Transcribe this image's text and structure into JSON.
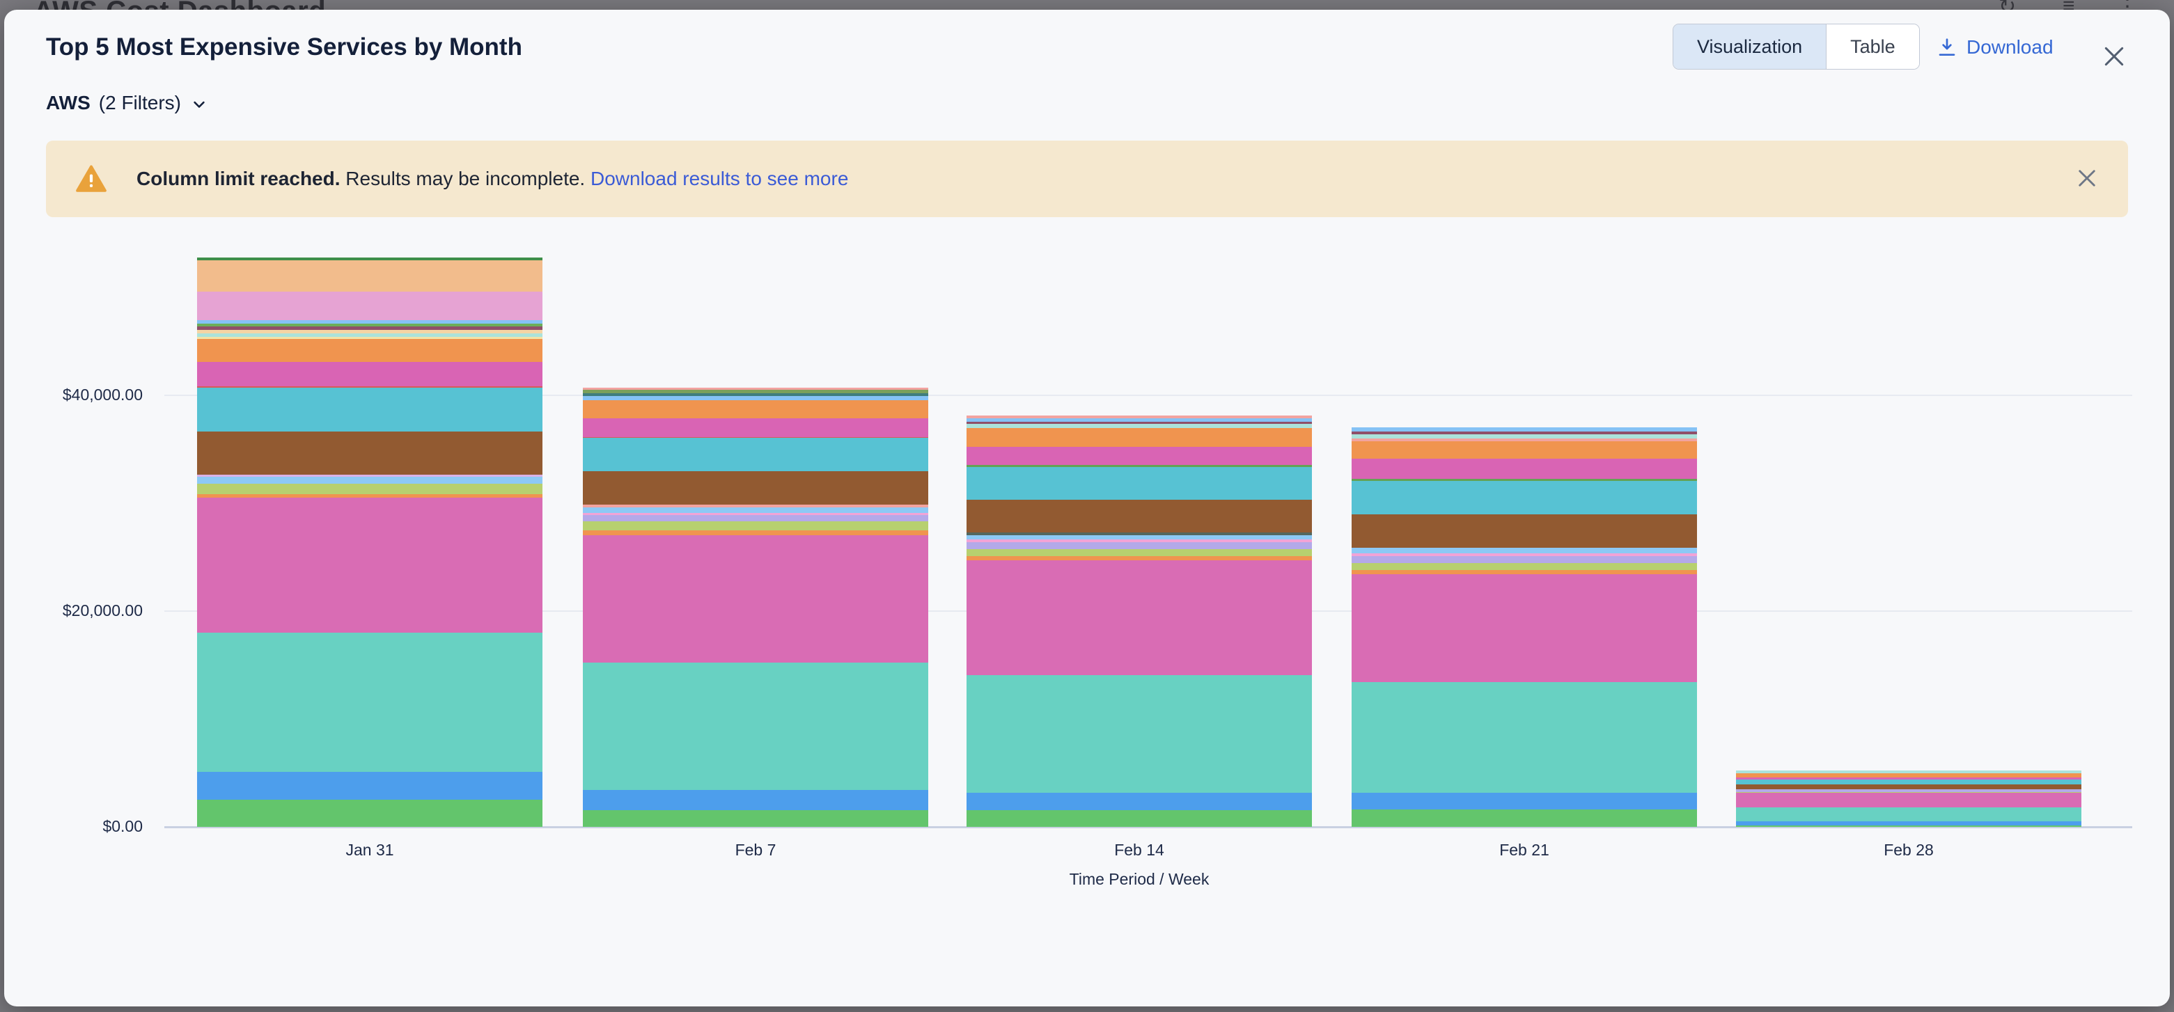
{
  "backdrop": {
    "page_title": "AWS Cost Dashboard"
  },
  "modal": {
    "title": "Top 5 Most Expensive Services by Month",
    "view_toggle": {
      "options": [
        "Visualization",
        "Table"
      ],
      "active": "Visualization"
    },
    "download_label": "Download",
    "filter": {
      "source": "AWS",
      "count_label": "(2 Filters)"
    }
  },
  "banner": {
    "title": "Column limit reached.",
    "body": "Results may be incomplete.",
    "link": "Download results to see more"
  },
  "icons": {
    "chevron_down": "chevron-down",
    "close": "close-x",
    "dismiss": "close-x",
    "download": "download-arrow-tray",
    "warning": "warning-triangle",
    "refresh": "↻",
    "menu": "≡",
    "kebab": "⋮"
  },
  "chart_data": {
    "type": "bar",
    "stacked": true,
    "title": "Top 5 Most Expensive Services by Month",
    "xlabel": "Time Period / Week",
    "ylabel": "",
    "y_tick_labels": [
      "$0.00",
      "$20,000.00",
      "$40,000.00"
    ],
    "y_tick_values": [
      0,
      20000,
      40000
    ],
    "ylim": [
      0,
      53000
    ],
    "grid": "horizontal",
    "legend": "none",
    "categories": [
      "Jan 31",
      "Feb 7",
      "Feb 14",
      "Feb 21",
      "Feb 28"
    ],
    "bar_totals_usd_approx": [
      52777,
      40711,
      38128,
      37032,
      5227
    ],
    "bars": [
      {
        "label": "Jan 31",
        "total": 52777,
        "segments": [
          {
            "color": "#63C56C",
            "value": 2516
          },
          {
            "color": "#4D9EEC",
            "value": 2581
          },
          {
            "color": "#68D1C2",
            "value": 12903
          },
          {
            "color": "#D96CB4",
            "value": 12516
          },
          {
            "color": "#F0944F",
            "value": 323
          },
          {
            "color": "#B7D06F",
            "value": 968
          },
          {
            "color": "#8DC9F5",
            "value": 645
          },
          {
            "color": "#D9B3E8",
            "value": 194
          },
          {
            "color": "#925A31",
            "value": 4000
          },
          {
            "color": "#57C2D3",
            "value": 4065
          },
          {
            "color": "#D95959",
            "value": 129
          },
          {
            "color": "#D964B4",
            "value": 2258
          },
          {
            "color": "#F0944F",
            "value": 2129
          },
          {
            "color": "#F2E3A8",
            "value": 194
          },
          {
            "color": "#ABE3DB",
            "value": 323
          },
          {
            "color": "#F5D5A5",
            "value": 323
          },
          {
            "color": "#8F5069",
            "value": 323
          },
          {
            "color": "#6CAE58",
            "value": 258
          },
          {
            "color": "#85C2F5",
            "value": 323
          },
          {
            "color": "#E6A3D3",
            "value": 2645
          },
          {
            "color": "#F2BC8C",
            "value": 2903
          },
          {
            "color": "#3E8E49",
            "value": 258
          }
        ]
      },
      {
        "label": "Feb 7",
        "total": 40711,
        "segments": [
          {
            "color": "#63C56C",
            "value": 1548
          },
          {
            "color": "#4D9EEC",
            "value": 1871
          },
          {
            "color": "#68D1C2",
            "value": 11806
          },
          {
            "color": "#D96CB4",
            "value": 11806
          },
          {
            "color": "#F0944F",
            "value": 452
          },
          {
            "color": "#B7D06F",
            "value": 839
          },
          {
            "color": "#B4A9E9",
            "value": 581
          },
          {
            "color": "#F2A3D6",
            "value": 194
          },
          {
            "color": "#8DC9F5",
            "value": 516
          },
          {
            "color": "#F2A3A0",
            "value": 258
          },
          {
            "color": "#925A31",
            "value": 3097
          },
          {
            "color": "#57C2D3",
            "value": 3097
          },
          {
            "color": "#D95959",
            "value": 65
          },
          {
            "color": "#D964B4",
            "value": 1742
          },
          {
            "color": "#F0944F",
            "value": 1677
          },
          {
            "color": "#85C2F5",
            "value": 387
          },
          {
            "color": "#3F7D7D",
            "value": 258
          },
          {
            "color": "#7BA05B",
            "value": 323
          },
          {
            "color": "#F2A3A0",
            "value": 194
          }
        ]
      },
      {
        "label": "Feb 14",
        "total": 38128,
        "segments": [
          {
            "color": "#63C56C",
            "value": 1548
          },
          {
            "color": "#4D9EEC",
            "value": 1613
          },
          {
            "color": "#68D1C2",
            "value": 10903
          },
          {
            "color": "#D96CB4",
            "value": 10645
          },
          {
            "color": "#F0944F",
            "value": 387
          },
          {
            "color": "#B7D06F",
            "value": 645
          },
          {
            "color": "#B4A9E9",
            "value": 645
          },
          {
            "color": "#F2A3D6",
            "value": 258
          },
          {
            "color": "#8DC9F5",
            "value": 387
          },
          {
            "color": "#54675F",
            "value": 258
          },
          {
            "color": "#925A31",
            "value": 3032
          },
          {
            "color": "#57C2D3",
            "value": 3032
          },
          {
            "color": "#63A355",
            "value": 194
          },
          {
            "color": "#D964B4",
            "value": 1677
          },
          {
            "color": "#F0944F",
            "value": 1742
          },
          {
            "color": "#ABE3DB",
            "value": 387
          },
          {
            "color": "#8F5069",
            "value": 194
          },
          {
            "color": "#85C2F5",
            "value": 323
          },
          {
            "color": "#F2A3A0",
            "value": 258
          }
        ]
      },
      {
        "label": "Feb 21",
        "total": 37032,
        "segments": [
          {
            "color": "#63C56C",
            "value": 1613
          },
          {
            "color": "#4D9EEC",
            "value": 1548
          },
          {
            "color": "#68D1C2",
            "value": 10258
          },
          {
            "color": "#D96CB4",
            "value": 10000
          },
          {
            "color": "#F0944F",
            "value": 387
          },
          {
            "color": "#B7D06F",
            "value": 645
          },
          {
            "color": "#B4A9E9",
            "value": 645
          },
          {
            "color": "#F2A3D6",
            "value": 258
          },
          {
            "color": "#8DC9F5",
            "value": 516
          },
          {
            "color": "#925A31",
            "value": 3097
          },
          {
            "color": "#57C2D3",
            "value": 3097
          },
          {
            "color": "#63A355",
            "value": 194
          },
          {
            "color": "#D964B4",
            "value": 1871
          },
          {
            "color": "#F0944F",
            "value": 1613
          },
          {
            "color": "#F2A3A0",
            "value": 258
          },
          {
            "color": "#ABE3DB",
            "value": 387
          },
          {
            "color": "#8F5069",
            "value": 258
          },
          {
            "color": "#85C2F5",
            "value": 387
          }
        ]
      },
      {
        "label": "Feb 28",
        "total": 5227,
        "segments": [
          {
            "color": "#63C56C",
            "value": 129
          },
          {
            "color": "#4D9EEC",
            "value": 387
          },
          {
            "color": "#68D1C2",
            "value": 1290
          },
          {
            "color": "#D96CB4",
            "value": 1355
          },
          {
            "color": "#B7D06F",
            "value": 65
          },
          {
            "color": "#B4A9E9",
            "value": 258
          },
          {
            "color": "#925A31",
            "value": 452
          },
          {
            "color": "#57C2D3",
            "value": 452
          },
          {
            "color": "#D964B4",
            "value": 194
          },
          {
            "color": "#F0944F",
            "value": 387
          },
          {
            "color": "#ABE3DB",
            "value": 258
          }
        ]
      }
    ]
  },
  "ui_colors": {
    "modal_bg": "#f7f8fa",
    "backdrop": "#7a797e",
    "accent_blue": "#3568d4",
    "banner_bg": "#f5e8cf",
    "banner_warning": "#e9a23b",
    "active_toggle_bg": "#dbe7f6",
    "title_text": "#14203a",
    "gridline": "#e7eaf1"
  }
}
